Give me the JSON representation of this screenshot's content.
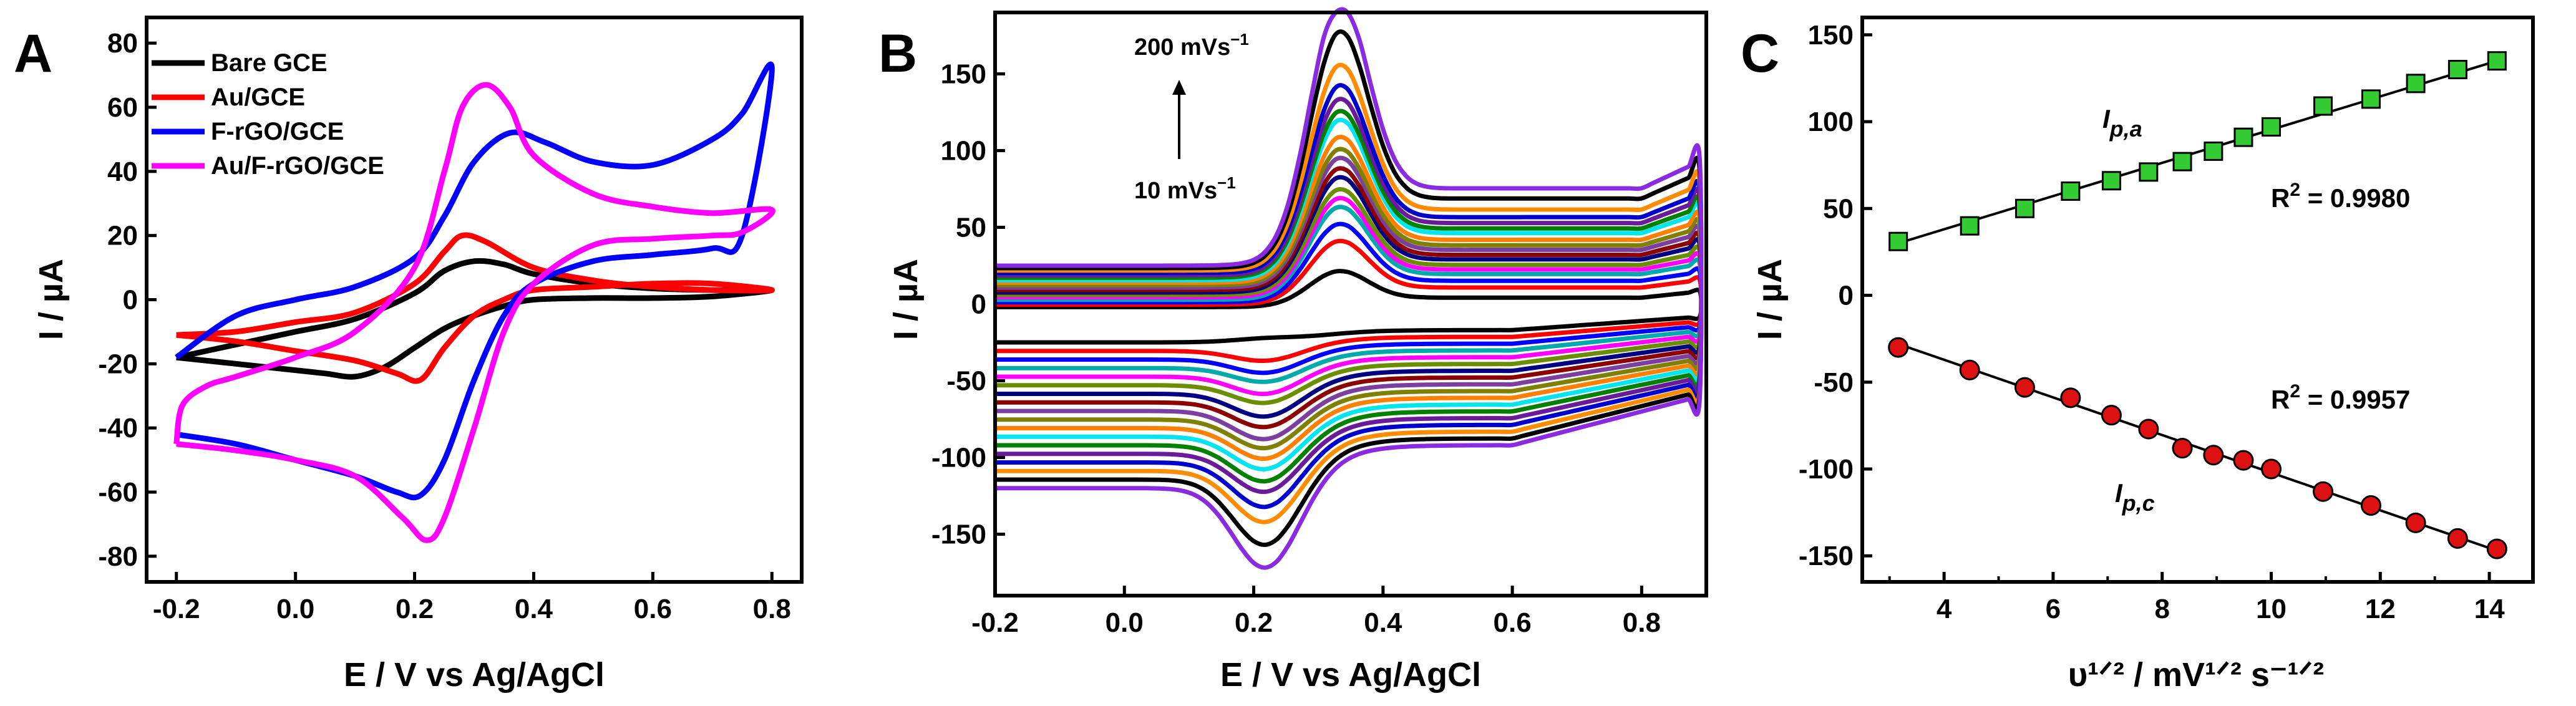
{
  "figure": {
    "panels": [
      "A",
      "B",
      "C"
    ]
  },
  "chart_data": [
    {
      "panel": "A",
      "type": "line",
      "xlabel": "E / V vs Ag/AgCl",
      "ylabel": "I / µA",
      "xlim": [
        -0.25,
        0.85
      ],
      "ylim": [
        -88,
        88
      ],
      "xticks": [
        "-0.2",
        "0.0",
        "0.2",
        "0.4",
        "0.6",
        "0.8"
      ],
      "yticks": [
        "80",
        "60",
        "40",
        "20",
        "0",
        "-20",
        "-40",
        "-60",
        "-80"
      ],
      "legend_position": "top-left",
      "grid": false,
      "series": [
        {
          "name": "Bare GCE",
          "color": "#000000",
          "forward": [
            [
              -0.2,
              -18
            ],
            [
              -0.1,
              -14
            ],
            [
              0.0,
              -10
            ],
            [
              0.1,
              -6
            ],
            [
              0.2,
              2
            ],
            [
              0.25,
              9
            ],
            [
              0.3,
              12
            ],
            [
              0.35,
              11
            ],
            [
              0.4,
              8
            ],
            [
              0.5,
              5
            ],
            [
              0.6,
              3.5
            ],
            [
              0.7,
              3
            ],
            [
              0.8,
              3
            ]
          ],
          "reverse": [
            [
              0.8,
              2
            ],
            [
              0.7,
              1
            ],
            [
              0.6,
              0.5
            ],
            [
              0.5,
              0.5
            ],
            [
              0.4,
              0
            ],
            [
              0.35,
              -2
            ],
            [
              0.3,
              -5
            ],
            [
              0.25,
              -9
            ],
            [
              0.2,
              -15
            ],
            [
              0.15,
              -21
            ],
            [
              0.1,
              -24
            ],
            [
              0.05,
              -23
            ],
            [
              0.0,
              -22
            ],
            [
              -0.1,
              -20
            ],
            [
              -0.2,
              -18
            ]
          ]
        },
        {
          "name": "Au/GCE",
          "color": "#ff0000",
          "forward": [
            [
              -0.2,
              -11
            ],
            [
              -0.1,
              -10
            ],
            [
              0.0,
              -7
            ],
            [
              0.1,
              -4
            ],
            [
              0.2,
              5
            ],
            [
              0.25,
              15
            ],
            [
              0.28,
              20
            ],
            [
              0.32,
              18
            ],
            [
              0.4,
              10
            ],
            [
              0.5,
              6
            ],
            [
              0.6,
              4
            ],
            [
              0.7,
              3
            ],
            [
              0.8,
              3
            ]
          ],
          "reverse": [
            [
              0.8,
              5
            ],
            [
              0.7,
              5
            ],
            [
              0.6,
              5
            ],
            [
              0.5,
              4
            ],
            [
              0.4,
              3
            ],
            [
              0.35,
              0
            ],
            [
              0.3,
              -5
            ],
            [
              0.25,
              -15
            ],
            [
              0.21,
              -25
            ],
            [
              0.17,
              -23
            ],
            [
              0.1,
              -19
            ],
            [
              0.0,
              -16
            ],
            [
              -0.1,
              -13
            ],
            [
              -0.2,
              -11
            ]
          ]
        },
        {
          "name": "F-rGO/GCE",
          "color": "#0000ff",
          "forward": [
            [
              -0.2,
              -18
            ],
            [
              -0.1,
              -5
            ],
            [
              0.0,
              0
            ],
            [
              0.1,
              4
            ],
            [
              0.2,
              13
            ],
            [
              0.25,
              26
            ],
            [
              0.3,
              43
            ],
            [
              0.36,
              52
            ],
            [
              0.42,
              49
            ],
            [
              0.5,
              43
            ],
            [
              0.6,
              42
            ],
            [
              0.7,
              50
            ],
            [
              0.75,
              58
            ],
            [
              0.8,
              72
            ]
          ],
          "reverse": [
            [
              0.8,
              30
            ],
            [
              0.75,
              20
            ],
            [
              0.7,
              16
            ],
            [
              0.6,
              14
            ],
            [
              0.5,
              12
            ],
            [
              0.4,
              5
            ],
            [
              0.35,
              -5
            ],
            [
              0.3,
              -25
            ],
            [
              0.25,
              -50
            ],
            [
              0.21,
              -61
            ],
            [
              0.17,
              -60
            ],
            [
              0.1,
              -55
            ],
            [
              0.0,
              -50
            ],
            [
              -0.1,
              -45
            ],
            [
              -0.2,
              -42
            ]
          ]
        },
        {
          "name": "Au/F-rGO/GCE",
          "color": "#ff00ff",
          "forward": [
            [
              -0.2,
              -45
            ],
            [
              -0.19,
              -33
            ],
            [
              -0.15,
              -27
            ],
            [
              -0.1,
              -24
            ],
            [
              0.0,
              -18
            ],
            [
              0.1,
              -10
            ],
            [
              0.2,
              10
            ],
            [
              0.25,
              40
            ],
            [
              0.28,
              60
            ],
            [
              0.32,
              67
            ],
            [
              0.36,
              60
            ],
            [
              0.4,
              45
            ],
            [
              0.5,
              33
            ],
            [
              0.6,
              29
            ],
            [
              0.7,
              27
            ],
            [
              0.8,
              28
            ]
          ],
          "reverse": [
            [
              0.8,
              25
            ],
            [
              0.75,
              21
            ],
            [
              0.7,
              20
            ],
            [
              0.6,
              19
            ],
            [
              0.5,
              17
            ],
            [
              0.4,
              5
            ],
            [
              0.35,
              -10
            ],
            [
              0.3,
              -40
            ],
            [
              0.25,
              -68
            ],
            [
              0.22,
              -75
            ],
            [
              0.18,
              -68
            ],
            [
              0.1,
              -55
            ],
            [
              0.0,
              -50
            ],
            [
              -0.1,
              -47
            ],
            [
              -0.2,
              -45
            ]
          ]
        }
      ]
    },
    {
      "panel": "B",
      "type": "line",
      "xlabel": "E / V vs Ag/AgCl",
      "ylabel": "I / µA",
      "xlim": [
        -0.2,
        0.9
      ],
      "ylim": [
        -190,
        190
      ],
      "xticks": [
        "-0.2",
        "0.0",
        "0.2",
        "0.4",
        "0.6",
        "0.8"
      ],
      "yticks": [
        "150",
        "100",
        "50",
        "0",
        "-50",
        "-100",
        "-150"
      ],
      "grid": false,
      "annotations": {
        "top": "200 mVs",
        "bottom": "10 mVs",
        "unit_sup": "−1"
      },
      "scan_rate_curves": {
        "colors": [
          "#000000",
          "#ff0000",
          "#0000ff",
          "#00aaaa",
          "#ff00ff",
          "#6b8e00",
          "#000080",
          "#8b0000",
          "#7b3fa0",
          "#808000",
          "#ff8000",
          "#00e5ee",
          "#008000",
          "#6a1b9a",
          "#0000cd",
          "#ff8c00",
          "#000000",
          "#8a2be2"
        ],
        "anodic_peak_current": [
          22,
          40,
          50,
          60,
          65,
          70,
          77,
          82,
          88,
          93,
          100,
          110,
          115,
          122,
          130,
          142,
          162,
          180
        ],
        "cathodic_peak_current": [
          -33,
          -48,
          -56,
          -62,
          -70,
          -76,
          -85,
          -92,
          -100,
          -106,
          -113,
          -120,
          -128,
          -135,
          -145,
          -155,
          -170,
          -185
        ],
        "anodic_peak_potential": 0.33,
        "cathodic_peak_potential": 0.22
      }
    },
    {
      "panel": "C",
      "type": "scatter",
      "xlabel": "υ¹ᐟ² / mV¹ᐟ² s⁻¹ᐟ²",
      "ylabel": "I / µA",
      "xlim": [
        2.5,
        14.8
      ],
      "ylim": [
        -165,
        160
      ],
      "xticks": [
        "4",
        "6",
        "8",
        "10",
        "12",
        "14"
      ],
      "yticks": [
        "150",
        "100",
        "50",
        "0",
        "-50",
        "-100",
        "-150"
      ],
      "grid": false,
      "series": [
        {
          "name": "I",
          "sub": "p,a",
          "color": "#33cc33",
          "marker": "square",
          "x": [
            3.16,
            4.47,
            5.48,
            6.32,
            7.07,
            7.75,
            8.37,
            8.94,
            9.49,
            10.0,
            10.95,
            11.83,
            12.65,
            13.42,
            14.14
          ],
          "y": [
            31,
            40,
            50,
            60,
            66,
            71,
            77,
            83,
            91,
            97,
            109,
            113,
            122,
            130,
            135
          ],
          "r2_label": "R",
          "r2_value": "2",
          "r2_text": " = 0.9980",
          "fit": [
            [
              3.16,
              30
            ],
            [
              14.14,
              135
            ]
          ]
        },
        {
          "name": "I",
          "sub": "p,c",
          "color": "#dd1111",
          "marker": "circle",
          "x": [
            3.16,
            4.47,
            5.48,
            6.32,
            7.07,
            7.75,
            8.37,
            8.94,
            9.49,
            10.0,
            10.95,
            11.83,
            12.65,
            13.42,
            14.14
          ],
          "y": [
            -30,
            -43,
            -53,
            -59,
            -69,
            -77,
            -88,
            -92,
            -95,
            -100,
            -113,
            -121,
            -131,
            -140,
            -146
          ],
          "r2_label": "R",
          "r2_value": "2",
          "r2_text": " = 0.9957",
          "fit": [
            [
              3.16,
              -28
            ],
            [
              14.14,
              -147
            ]
          ]
        }
      ]
    }
  ]
}
